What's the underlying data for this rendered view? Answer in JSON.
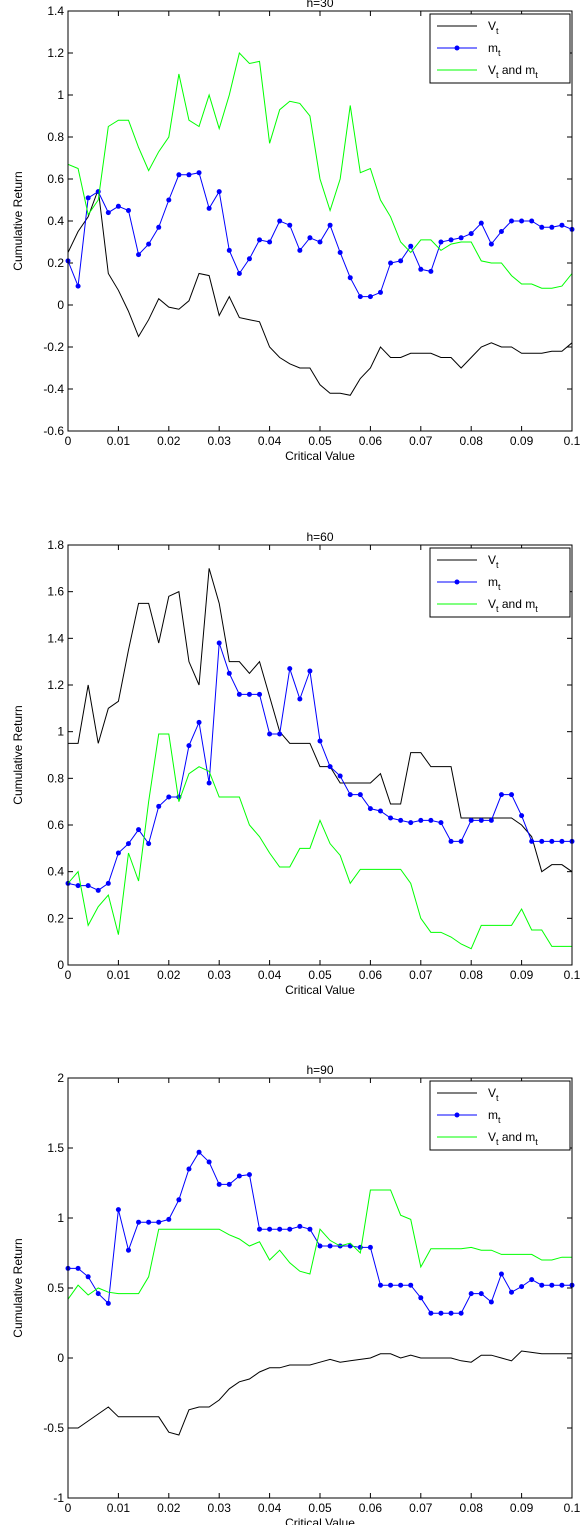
{
  "chart_data": [
    {
      "type": "line",
      "title": "h=30",
      "xlabel": "Critical Value",
      "ylabel": "Cumulative Return",
      "legend": "upper right",
      "xlim": [
        0,
        0.1
      ],
      "xticks": [
        0,
        0.01,
        0.02,
        0.03,
        0.04,
        0.05,
        0.06,
        0.07,
        0.08,
        0.09,
        0.1
      ],
      "ylim": [
        -0.6,
        1.4
      ],
      "yticks": [
        -0.6,
        -0.4,
        -0.2,
        0,
        0.2,
        0.4,
        0.6,
        0.8,
        1,
        1.2,
        1.4
      ],
      "x": [
        0,
        0.002,
        0.004,
        0.006,
        0.008,
        0.01,
        0.012,
        0.014,
        0.016,
        0.018,
        0.02,
        0.022,
        0.024,
        0.026,
        0.028,
        0.03,
        0.032,
        0.034,
        0.036,
        0.038,
        0.04,
        0.042,
        0.044,
        0.046,
        0.048,
        0.05,
        0.052,
        0.054,
        0.056,
        0.058,
        0.06,
        0.062,
        0.064,
        0.066,
        0.068,
        0.07,
        0.072,
        0.074,
        0.076,
        0.078,
        0.08,
        0.082,
        0.084,
        0.086,
        0.088,
        0.09,
        0.092,
        0.094,
        0.096,
        0.098,
        0.1
      ],
      "series": [
        {
          "name": [
            "V",
            "t"
          ],
          "color": "#000000",
          "values": [
            0.25,
            0.35,
            0.42,
            0.55,
            0.15,
            0.07,
            -0.03,
            -0.15,
            -0.07,
            0.03,
            -0.01,
            -0.02,
            0.02,
            0.15,
            0.14,
            -0.05,
            0.04,
            -0.06,
            -0.07,
            -0.08,
            -0.2,
            -0.25,
            -0.28,
            -0.3,
            -0.3,
            -0.38,
            -0.42,
            -0.42,
            -0.43,
            -0.35,
            -0.3,
            -0.2,
            -0.25,
            -0.25,
            -0.23,
            -0.23,
            -0.23,
            -0.25,
            -0.25,
            -0.3,
            -0.25,
            -0.2,
            -0.18,
            -0.2,
            -0.2,
            -0.23,
            -0.23,
            -0.23,
            -0.22,
            -0.22,
            -0.18
          ]
        },
        {
          "name": [
            "m",
            "t"
          ],
          "color": "#0000ff",
          "marker": "o",
          "values": [
            0.21,
            0.09,
            0.51,
            0.54,
            0.44,
            0.47,
            0.45,
            0.24,
            0.29,
            0.37,
            0.5,
            0.62,
            0.62,
            0.63,
            0.46,
            0.54,
            0.26,
            0.15,
            0.22,
            0.31,
            0.3,
            0.4,
            0.38,
            0.26,
            0.32,
            0.3,
            0.38,
            0.25,
            0.13,
            0.04,
            0.04,
            0.06,
            0.2,
            0.21,
            0.28,
            0.17,
            0.16,
            0.3,
            0.31,
            0.32,
            0.34,
            0.39,
            0.29,
            0.35,
            0.4,
            0.4,
            0.4,
            0.37,
            0.37,
            0.38,
            0.36
          ]
        },
        {
          "name": [
            "V",
            "t",
            " and m",
            "t"
          ],
          "color": "#00ff00",
          "values": [
            0.67,
            0.65,
            0.43,
            0.5,
            0.85,
            0.88,
            0.88,
            0.75,
            0.64,
            0.73,
            0.8,
            1.1,
            0.88,
            0.85,
            1.0,
            0.84,
            1.0,
            1.2,
            1.15,
            1.16,
            0.77,
            0.93,
            0.97,
            0.96,
            0.9,
            0.6,
            0.45,
            0.6,
            0.95,
            0.63,
            0.65,
            0.5,
            0.42,
            0.3,
            0.25,
            0.31,
            0.31,
            0.26,
            0.29,
            0.3,
            0.3,
            0.21,
            0.2,
            0.2,
            0.14,
            0.1,
            0.1,
            0.08,
            0.08,
            0.09,
            0.15
          ]
        }
      ]
    },
    {
      "type": "line",
      "title": "h=60",
      "xlabel": "Critical Value",
      "ylabel": "Cumulative Return",
      "legend": "upper right",
      "xlim": [
        0,
        0.1
      ],
      "xticks": [
        0,
        0.01,
        0.02,
        0.03,
        0.04,
        0.05,
        0.06,
        0.07,
        0.08,
        0.09,
        0.1
      ],
      "ylim": [
        0,
        1.8
      ],
      "yticks": [
        0,
        0.2,
        0.4,
        0.6,
        0.8,
        1,
        1.2,
        1.4,
        1.6,
        1.8
      ],
      "x": [
        0,
        0.002,
        0.004,
        0.006,
        0.008,
        0.01,
        0.012,
        0.014,
        0.016,
        0.018,
        0.02,
        0.022,
        0.024,
        0.026,
        0.028,
        0.03,
        0.032,
        0.034,
        0.036,
        0.038,
        0.04,
        0.042,
        0.044,
        0.046,
        0.048,
        0.05,
        0.052,
        0.054,
        0.056,
        0.058,
        0.06,
        0.062,
        0.064,
        0.066,
        0.068,
        0.07,
        0.072,
        0.074,
        0.076,
        0.078,
        0.08,
        0.082,
        0.084,
        0.086,
        0.088,
        0.09,
        0.092,
        0.094,
        0.096,
        0.098,
        0.1
      ],
      "series": [
        {
          "name": [
            "V",
            "t"
          ],
          "color": "#000000",
          "values": [
            0.95,
            0.95,
            1.2,
            0.95,
            1.1,
            1.13,
            1.35,
            1.55,
            1.55,
            1.38,
            1.58,
            1.6,
            1.3,
            1.2,
            1.7,
            1.55,
            1.3,
            1.3,
            1.25,
            1.3,
            1.15,
            1.0,
            0.95,
            0.95,
            0.95,
            0.85,
            0.85,
            0.78,
            0.78,
            0.78,
            0.78,
            0.82,
            0.69,
            0.69,
            0.91,
            0.91,
            0.85,
            0.85,
            0.85,
            0.63,
            0.63,
            0.63,
            0.63,
            0.63,
            0.63,
            0.6,
            0.55,
            0.4,
            0.43,
            0.43,
            0.4
          ]
        },
        {
          "name": [
            "m",
            "t"
          ],
          "color": "#0000ff",
          "marker": "o",
          "values": [
            0.35,
            0.34,
            0.34,
            0.32,
            0.35,
            0.48,
            0.52,
            0.58,
            0.52,
            0.68,
            0.72,
            0.72,
            0.94,
            1.04,
            0.78,
            1.38,
            1.25,
            1.16,
            1.16,
            1.16,
            0.99,
            0.99,
            1.27,
            1.14,
            1.26,
            0.96,
            0.85,
            0.81,
            0.73,
            0.73,
            0.67,
            0.66,
            0.63,
            0.62,
            0.61,
            0.62,
            0.62,
            0.61,
            0.53,
            0.53,
            0.62,
            0.62,
            0.62,
            0.73,
            0.73,
            0.64,
            0.53,
            0.53,
            0.53,
            0.53,
            0.53
          ]
        },
        {
          "name": [
            "V",
            "t",
            " and m",
            "t"
          ],
          "color": "#00ff00",
          "values": [
            0.35,
            0.4,
            0.17,
            0.25,
            0.3,
            0.13,
            0.48,
            0.36,
            0.7,
            0.99,
            0.99,
            0.7,
            0.82,
            0.85,
            0.83,
            0.72,
            0.72,
            0.72,
            0.6,
            0.55,
            0.48,
            0.42,
            0.42,
            0.5,
            0.5,
            0.62,
            0.52,
            0.47,
            0.35,
            0.41,
            0.41,
            0.41,
            0.41,
            0.41,
            0.35,
            0.2,
            0.14,
            0.14,
            0.12,
            0.09,
            0.07,
            0.17,
            0.17,
            0.17,
            0.17,
            0.24,
            0.15,
            0.15,
            0.08,
            0.08,
            0.08
          ]
        }
      ]
    },
    {
      "type": "line",
      "title": "h=90",
      "xlabel": "Critical Value",
      "ylabel": "Cumulative Return",
      "legend": "upper right",
      "xlim": [
        0,
        0.1
      ],
      "xticks": [
        0,
        0.01,
        0.02,
        0.03,
        0.04,
        0.05,
        0.06,
        0.07,
        0.08,
        0.09,
        0.1
      ],
      "ylim": [
        -1,
        2
      ],
      "yticks": [
        -1,
        -0.5,
        0,
        0.5,
        1,
        1.5,
        2
      ],
      "x": [
        0,
        0.002,
        0.004,
        0.006,
        0.008,
        0.01,
        0.012,
        0.014,
        0.016,
        0.018,
        0.02,
        0.022,
        0.024,
        0.026,
        0.028,
        0.03,
        0.032,
        0.034,
        0.036,
        0.038,
        0.04,
        0.042,
        0.044,
        0.046,
        0.048,
        0.05,
        0.052,
        0.054,
        0.056,
        0.058,
        0.06,
        0.062,
        0.064,
        0.066,
        0.068,
        0.07,
        0.072,
        0.074,
        0.076,
        0.078,
        0.08,
        0.082,
        0.084,
        0.086,
        0.088,
        0.09,
        0.092,
        0.094,
        0.096,
        0.098,
        0.1
      ],
      "series": [
        {
          "name": [
            "V",
            "t"
          ],
          "color": "#000000",
          "values": [
            -0.5,
            -0.5,
            -0.45,
            -0.4,
            -0.35,
            -0.42,
            -0.42,
            -0.42,
            -0.42,
            -0.42,
            -0.53,
            -0.55,
            -0.37,
            -0.35,
            -0.35,
            -0.3,
            -0.22,
            -0.17,
            -0.15,
            -0.1,
            -0.07,
            -0.07,
            -0.05,
            -0.05,
            -0.05,
            -0.03,
            -0.01,
            -0.03,
            -0.02,
            -0.01,
            0,
            0.03,
            0.03,
            0,
            0.02,
            0,
            0,
            0,
            0,
            -0.02,
            -0.03,
            0.02,
            0.02,
            0,
            -0.02,
            0.05,
            0.04,
            0.03,
            0.03,
            0.03,
            0.03
          ]
        },
        {
          "name": [
            "m",
            "t"
          ],
          "color": "#0000ff",
          "marker": "o",
          "values": [
            0.64,
            0.64,
            0.58,
            0.46,
            0.39,
            1.06,
            0.77,
            0.97,
            0.97,
            0.97,
            0.99,
            1.13,
            1.35,
            1.47,
            1.4,
            1.24,
            1.24,
            1.3,
            1.31,
            0.92,
            0.92,
            0.92,
            0.92,
            0.94,
            0.92,
            0.8,
            0.8,
            0.8,
            0.8,
            0.79,
            0.79,
            0.52,
            0.52,
            0.52,
            0.52,
            0.43,
            0.32,
            0.32,
            0.32,
            0.32,
            0.46,
            0.46,
            0.4,
            0.6,
            0.47,
            0.51,
            0.56,
            0.52,
            0.52,
            0.52,
            0.52
          ]
        },
        {
          "name": [
            "V",
            "t",
            " and m",
            "t"
          ],
          "color": "#00ff00",
          "values": [
            0.42,
            0.52,
            0.45,
            0.5,
            0.47,
            0.46,
            0.46,
            0.46,
            0.58,
            0.92,
            0.92,
            0.92,
            0.92,
            0.92,
            0.92,
            0.92,
            0.88,
            0.85,
            0.8,
            0.83,
            0.7,
            0.77,
            0.68,
            0.62,
            0.6,
            0.92,
            0.84,
            0.8,
            0.82,
            0.75,
            1.2,
            1.2,
            1.2,
            1.02,
            0.99,
            0.65,
            0.78,
            0.78,
            0.78,
            0.78,
            0.79,
            0.77,
            0.77,
            0.74,
            0.74,
            0.74,
            0.74,
            0.7,
            0.7,
            0.72,
            0.72
          ]
        }
      ]
    }
  ]
}
